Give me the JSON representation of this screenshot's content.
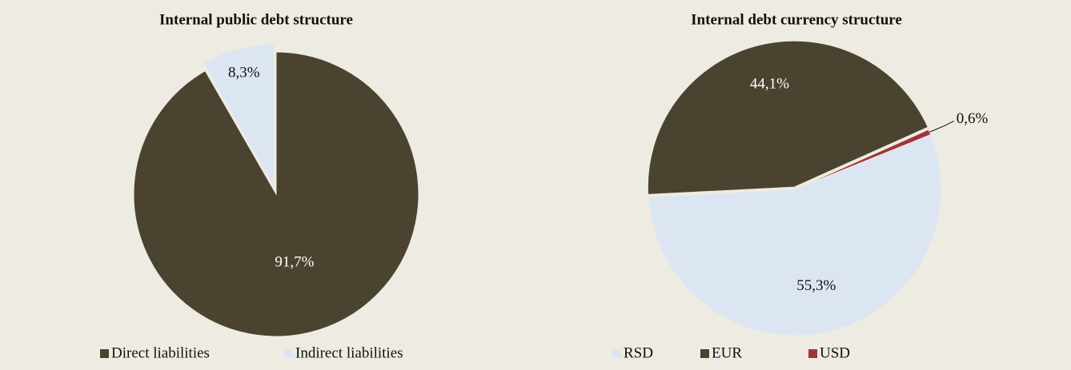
{
  "chart_data": [
    {
      "type": "pie",
      "title": "Internal public debt structure",
      "categories": [
        "Direct liabilities",
        "Indirect liabilities"
      ],
      "values": [
        91.7,
        8.3
      ],
      "value_labels": [
        "91,7%",
        "8,3%"
      ],
      "colors": [
        "#4a4330",
        "#dce6f2"
      ],
      "legend": "bottom"
    },
    {
      "type": "pie",
      "title": "Internal debt currency structure",
      "categories": [
        "RSD",
        "EUR",
        "USD"
      ],
      "values": [
        55.3,
        44.1,
        0.6
      ],
      "value_labels": [
        "55,3%",
        "44,1%",
        "0,6%"
      ],
      "colors": [
        "#dce6f2",
        "#4a4330",
        "#a0343a"
      ],
      "legend": "bottom"
    }
  ]
}
